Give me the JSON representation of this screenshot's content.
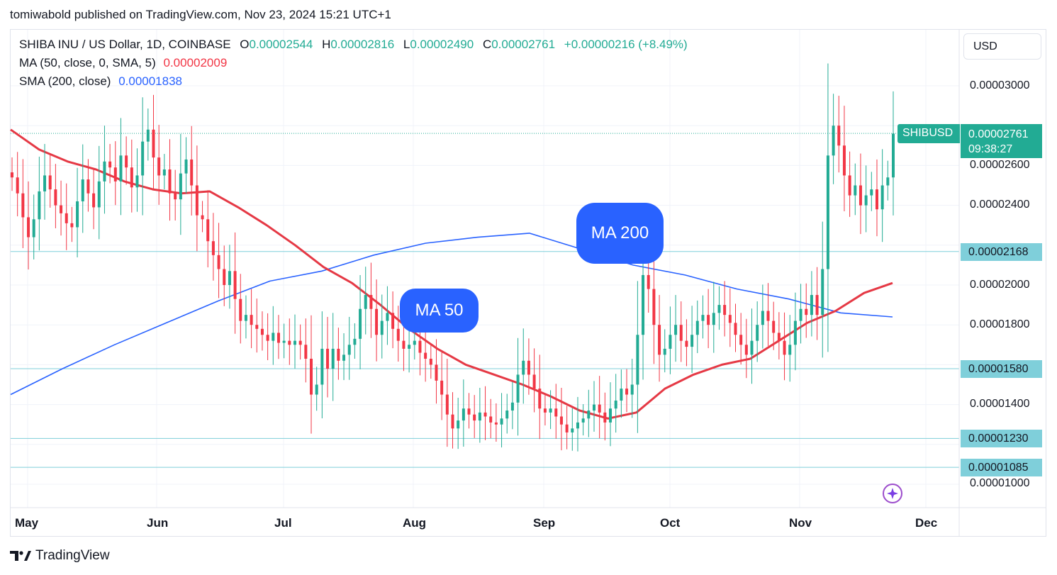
{
  "header": {
    "publisher_line": "tomiwabold published on TradingView.com, Nov 23, 2024 15:21 UTC+1"
  },
  "legend": {
    "symbol": "SHIBA INU / US Dollar, 1D, COINBASE",
    "o_label": "O",
    "o_value": "0.00002544",
    "h_label": "H",
    "h_value": "0.00002816",
    "l_label": "L",
    "l_value": "0.00002490",
    "c_label": "C",
    "c_value": "0.00002761",
    "change": "+0.00000216 (+8.49%)",
    "ma50_label": "MA (50, close, 0, SMA, 5)",
    "ma50_value": "0.00002009",
    "sma200_label": "SMA (200, close)",
    "sma200_value": "0.00001838"
  },
  "toolbar": {
    "currency": "USD"
  },
  "price_tags": {
    "symbol": "SHIBUSD",
    "last": "0.00002761",
    "countdown": "09:38:27",
    "levels": [
      "0.00002168",
      "0.00001580",
      "0.00001230",
      "0.00001085"
    ]
  },
  "callouts": {
    "ma50": "MA 50",
    "ma200": "MA 200"
  },
  "footer": {
    "brand": "TradingView"
  },
  "colors": {
    "up": "#22ab94",
    "down": "#f23645",
    "ma50": "#e53945",
    "sma200": "#2962ff",
    "level_line": "#7fcfda"
  },
  "icons": {
    "bottom_right": "sparkle-icon",
    "brand": "tradingview-logo-icon"
  },
  "chart_data": {
    "type": "candlestick",
    "x_ticks": [
      "May",
      "Jun",
      "Jul",
      "Aug",
      "Sep",
      "Oct",
      "Nov",
      "Dec"
    ],
    "y_ticks": [
      "0.00003000",
      "0.00002600",
      "0.00002400",
      "0.00002000",
      "0.00001800",
      "0.00001400",
      "0.00001000"
    ],
    "ylim": [
      8.9e-06,
      3.25e-05
    ],
    "horizontal_levels": [
      2.168e-05,
      1.58e-05,
      1.23e-05,
      1.085e-05
    ],
    "last_price": 2.761e-05,
    "candles_close": [
      2.54e-05,
      2.46e-05,
      2.34e-05,
      2.24e-05,
      2.33e-05,
      2.47e-05,
      2.55e-05,
      2.48e-05,
      2.4e-05,
      2.36e-05,
      2.31e-05,
      2.29e-05,
      2.42e-05,
      2.53e-05,
      2.46e-05,
      2.39e-05,
      2.52e-05,
      2.62e-05,
      2.59e-05,
      2.52e-05,
      2.65e-05,
      2.59e-05,
      2.49e-05,
      2.55e-05,
      2.72e-05,
      2.78e-05,
      2.64e-05,
      2.55e-05,
      2.58e-05,
      2.46e-05,
      2.43e-05,
      2.56e-05,
      2.63e-05,
      2.5e-05,
      2.35e-05,
      2.33e-05,
      2.22e-05,
      2.15e-05,
      2.08e-05,
      2e-05,
      2.07e-05,
      1.93e-05,
      1.82e-05,
      1.85e-05,
      1.8e-05,
      1.78e-05,
      1.75e-05,
      1.72e-05,
      1.76e-05,
      1.71e-05,
      1.72e-05,
      1.7e-05,
      1.72e-05,
      1.7e-05,
      1.63e-05,
      1.45e-05,
      1.5e-05,
      1.68e-05,
      1.58e-05,
      1.68e-05,
      1.62e-05,
      1.65e-05,
      1.7e-05,
      1.73e-05,
      1.88e-05,
      1.95e-05,
      1.88e-05,
      1.75e-05,
      1.82e-05,
      1.86e-05,
      1.78e-05,
      1.72e-05,
      1.68e-05,
      1.7e-05,
      1.72e-05,
      1.66e-05,
      1.63e-05,
      1.6e-05,
      1.52e-05,
      1.45e-05,
      1.35e-05,
      1.28e-05,
      1.32e-05,
      1.38e-05,
      1.35e-05,
      1.32e-05,
      1.36e-05,
      1.34e-05,
      1.31e-05,
      1.3e-05,
      1.33e-05,
      1.37e-05,
      1.41e-05,
      1.55e-05,
      1.62e-05,
      1.55e-05,
      1.48e-05,
      1.38e-05,
      1.36e-05,
      1.38e-05,
      1.34e-05,
      1.3e-05,
      1.26e-05,
      1.28e-05,
      1.31e-05,
      1.33e-05,
      1.37e-05,
      1.4e-05,
      1.36e-05,
      1.31e-05,
      1.38e-05,
      1.42e-05,
      1.48e-05,
      1.45e-05,
      1.5e-05,
      1.75e-05,
      2.05e-05,
      1.98e-05,
      1.8e-05,
      1.65e-05,
      1.68e-05,
      1.75e-05,
      1.8e-05,
      1.72e-05,
      1.69e-05,
      1.75e-05,
      1.82e-05,
      1.85e-05,
      1.8e-05,
      1.86e-05,
      1.9e-05,
      1.85e-05,
      1.81e-05,
      1.75e-05,
      1.7e-05,
      1.65e-05,
      1.72e-05,
      1.8e-05,
      1.87e-05,
      1.82e-05,
      1.76e-05,
      1.72e-05,
      1.65e-05,
      1.7e-05,
      1.82e-05,
      1.88e-05,
      1.85e-05,
      1.95e-05,
      1.85e-05,
      2.08e-05,
      2.65e-05,
      2.8e-05,
      2.7e-05,
      2.55e-05,
      2.45e-05,
      2.5e-05,
      2.4e-05,
      2.45e-05,
      2.48e-05,
      2.38e-05,
      2.5e-05,
      2.54e-05,
      2.76e-05
    ],
    "ma50": [
      2.78e-05,
      2.68e-05,
      2.62e-05,
      2.58e-05,
      2.52e-05,
      2.48e-05,
      2.46e-05,
      2.47e-05,
      2.39e-05,
      2.3e-05,
      2.2e-05,
      2.09e-05,
      2.01e-05,
      1.9e-05,
      1.78e-05,
      1.68e-05,
      1.6e-05,
      1.55e-05,
      1.5e-05,
      1.44e-05,
      1.37e-05,
      1.33e-05,
      1.36e-05,
      1.48e-05,
      1.55e-05,
      1.6e-05,
      1.63e-05,
      1.72e-05,
      1.81e-05,
      1.87e-05,
      1.96e-05,
      2.01e-05
    ],
    "sma200": [
      1.45e-05,
      1.58e-05,
      1.7e-05,
      1.81e-05,
      1.92e-05,
      2.02e-05,
      2.07e-05,
      2.15e-05,
      2.21e-05,
      2.24e-05,
      2.26e-05,
      2.18e-05,
      2.1e-05,
      2.05e-05,
      1.98e-05,
      1.93e-05,
      1.86e-05,
      1.84e-05
    ]
  }
}
